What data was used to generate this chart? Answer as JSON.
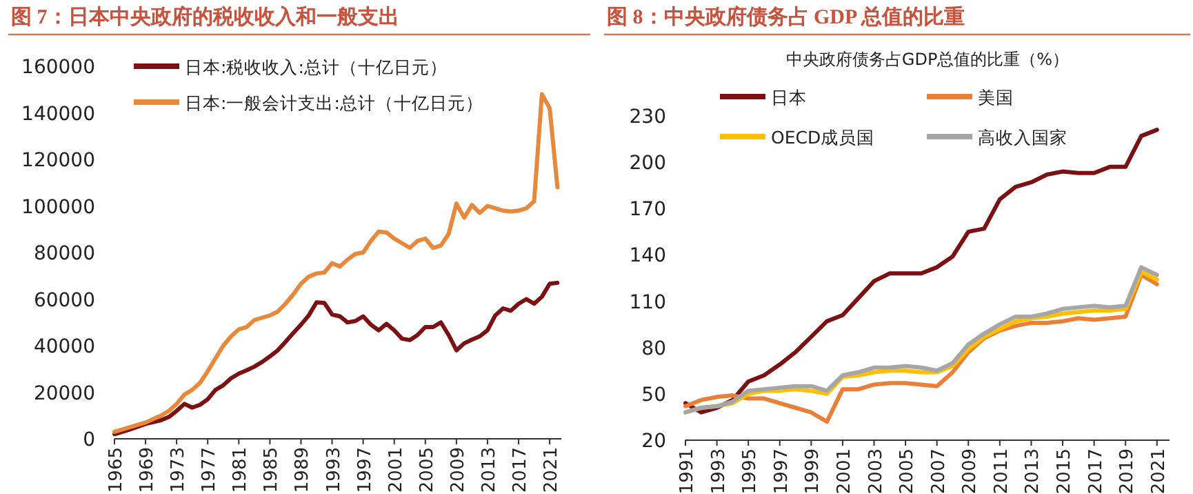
{
  "chart_data": [
    {
      "type": "line",
      "title": "图 7：日本中央政府的税收收入和一般支出",
      "xlim": [
        1965,
        2022.5
      ],
      "xticks": [
        1965,
        1969,
        1973,
        1977,
        1981,
        1985,
        1989,
        1993,
        1997,
        2001,
        2005,
        2009,
        2013,
        2017,
        2021
      ],
      "ylim": [
        0,
        160000
      ],
      "yticks": [
        0,
        20000,
        40000,
        60000,
        80000,
        100000,
        120000,
        140000,
        160000
      ],
      "grid": false,
      "legend": "top left",
      "series": [
        {
          "name": "日本:税收收入:总计（十亿日元）",
          "color": "#7b1113",
          "x": [
            1965,
            1967,
            1969,
            1971,
            1972,
            1973,
            1974,
            1975,
            1976,
            1977,
            1978,
            1979,
            1980,
            1981,
            1982,
            1983,
            1984,
            1985,
            1986,
            1987,
            1988,
            1989,
            1990,
            1991,
            1992,
            1993,
            1994,
            1995,
            1996,
            1997,
            1998,
            1999,
            2000,
            2001,
            2002,
            2003,
            2004,
            2005,
            2006,
            2007,
            2008,
            2009,
            2010,
            2011,
            2012,
            2013,
            2014,
            2015,
            2016,
            2017,
            2018,
            2019,
            2020,
            2021,
            2022
          ],
          "values": [
            2000,
            4000,
            6400,
            8000,
            9400,
            12000,
            15000,
            13400,
            14600,
            17000,
            21000,
            23000,
            26000,
            28000,
            29400,
            31000,
            33000,
            35400,
            38000,
            41600,
            45400,
            49000,
            53000,
            58600,
            58400,
            53400,
            52600,
            50000,
            50600,
            52600,
            49000,
            46600,
            49400,
            46600,
            43000,
            42400,
            44600,
            48000,
            48000,
            50000,
            44600,
            38000,
            41000,
            42600,
            44000,
            46600,
            53000,
            56000,
            55000,
            58000,
            60000,
            58000,
            61000,
            66600,
            67000
          ]
        },
        {
          "name": "日本:一般会计支出:总计（十亿日元）",
          "color": "#e8883a",
          "x": [
            1965,
            1967,
            1969,
            1971,
            1972,
            1973,
            1974,
            1975,
            1976,
            1977,
            1978,
            1979,
            1980,
            1981,
            1982,
            1983,
            1984,
            1985,
            1986,
            1987,
            1988,
            1989,
            1990,
            1991,
            1992,
            1993,
            1994,
            1995,
            1996,
            1997,
            1998,
            1999,
            2000,
            2001,
            2002,
            2003,
            2004,
            2005,
            2006,
            2007,
            2008,
            2009,
            2010,
            2011,
            2012,
            2013,
            2014,
            2015,
            2016,
            2017,
            2018,
            2019,
            2020,
            2021,
            2022
          ],
          "values": [
            3000,
            5000,
            7000,
            10000,
            12000,
            15000,
            19000,
            21000,
            24000,
            29000,
            34600,
            40000,
            44000,
            47000,
            48000,
            51000,
            52000,
            53000,
            54600,
            58000,
            62000,
            66600,
            69600,
            71000,
            71400,
            75400,
            74000,
            77000,
            79400,
            80000,
            85000,
            89000,
            88600,
            86000,
            84000,
            82000,
            85000,
            86000,
            82000,
            83000,
            88000,
            101000,
            95000,
            100400,
            97000,
            100000,
            99000,
            98000,
            97600,
            98000,
            99000,
            102000,
            148000,
            142000,
            108000
          ]
        }
      ]
    },
    {
      "type": "line",
      "title": "图 8：中央政府债务占 GDP 总值的比重",
      "subtitle": "中央政府债务占GDP总值的比重（%）",
      "xlim": [
        1991,
        2021.8
      ],
      "xticks": [
        1991,
        1993,
        1995,
        1997,
        1999,
        2001,
        2003,
        2005,
        2007,
        2009,
        2011,
        2013,
        2015,
        2017,
        2019,
        2021
      ],
      "ylim": [
        20,
        230
      ],
      "yticks": [
        20,
        50,
        80,
        110,
        140,
        170,
        200,
        230
      ],
      "grid": false,
      "legend": "top",
      "x": [
        1991,
        1992,
        1993,
        1994,
        1995,
        1996,
        1997,
        1998,
        1999,
        2000,
        2001,
        2002,
        2003,
        2004,
        2005,
        2006,
        2007,
        2008,
        2009,
        2010,
        2011,
        2012,
        2013,
        2014,
        2015,
        2016,
        2017,
        2018,
        2019,
        2020,
        2021
      ],
      "series": [
        {
          "name": "日本",
          "color": "#7b1113",
          "values": [
            44,
            38,
            41,
            46,
            58,
            62,
            69,
            77,
            87,
            97,
            101,
            112,
            123,
            128,
            128,
            128,
            132,
            139,
            155,
            157,
            176,
            184,
            187,
            192,
            194,
            193,
            193,
            197,
            197,
            217,
            221
          ]
        },
        {
          "name": "美国",
          "color": "#e8803a",
          "values": [
            42,
            46,
            48,
            49,
            47,
            47,
            44,
            41,
            38,
            32,
            53,
            53,
            56,
            57,
            57,
            56,
            55,
            64,
            77,
            86,
            91,
            94,
            96,
            96,
            97,
            99,
            98,
            99,
            100,
            127,
            121
          ]
        },
        {
          "name": "OECD成员国",
          "color": "#ffc000",
          "values": [
            38,
            41,
            42,
            44,
            50,
            52,
            52,
            53,
            52,
            50,
            61,
            62,
            64,
            65,
            65,
            64,
            64,
            68,
            79,
            87,
            92,
            97,
            99,
            100,
            102,
            103,
            104,
            104,
            105,
            129,
            124
          ]
        },
        {
          "name": "高收入国家",
          "color": "#a6a6a6",
          "values": [
            38,
            41,
            42,
            45,
            52,
            53,
            54,
            55,
            55,
            52,
            62,
            64,
            67,
            67,
            68,
            67,
            65,
            70,
            82,
            89,
            95,
            100,
            100,
            102,
            105,
            106,
            107,
            106,
            107,
            132,
            127
          ]
        }
      ]
    }
  ]
}
